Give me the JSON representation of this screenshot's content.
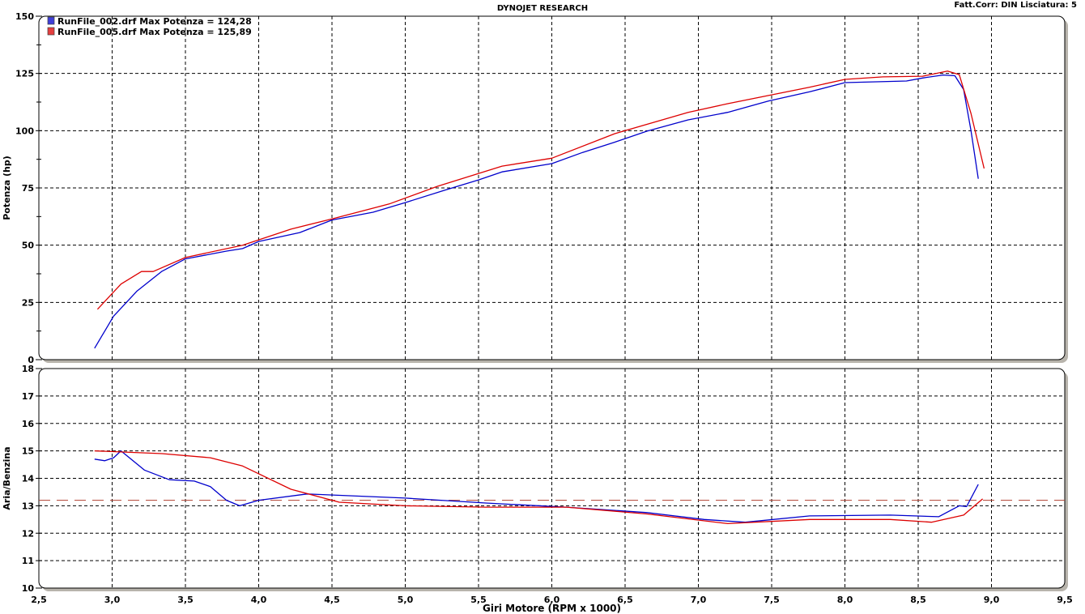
{
  "header": {
    "title": "DYNOJET RESEARCH",
    "info": "Fatt.Corr: DIN  Lisciatura: 5"
  },
  "colors": {
    "run1": "#0000cc",
    "run2": "#dd0000",
    "reference": "#b04030"
  },
  "chart_data": [
    {
      "type": "line",
      "title": "DYNOJET RESEARCH",
      "xlabel": "Giri Motore (RPM x 1000)",
      "ylabel": "Potenza (hp)",
      "xlim": [
        2.5,
        9.5
      ],
      "ylim": [
        0,
        150
      ],
      "x_ticks": [
        "2,5",
        "3,0",
        "3,5",
        "4,0",
        "4,5",
        "5,0",
        "5,5",
        "6,0",
        "6,5",
        "7,0",
        "7,5",
        "8,0",
        "8,5",
        "9,0",
        "9,5"
      ],
      "y_ticks": [
        "0",
        "25",
        "50",
        "75",
        "100",
        "125",
        "150"
      ],
      "grid": true,
      "legend_placement": "top-left",
      "series": [
        {
          "name": "RunFile_002.drf Max Potenza = 124,28",
          "color": "#0000cc",
          "x": [
            2.88,
            3.01,
            3.17,
            3.34,
            3.5,
            3.78,
            3.89,
            4.0,
            4.28,
            4.5,
            4.78,
            5.0,
            5.27,
            5.5,
            5.66,
            6.0,
            6.21,
            6.43,
            6.65,
            6.93,
            7.2,
            7.48,
            7.76,
            8.0,
            8.42,
            8.53,
            8.67,
            8.75,
            8.81,
            8.86,
            8.91
          ],
          "y": [
            5,
            19,
            30,
            38.6,
            44,
            47.4,
            48.5,
            51.6,
            55.5,
            61,
            64.4,
            68.6,
            74,
            78.5,
            82,
            85.6,
            90.5,
            95,
            99.8,
            104.7,
            108,
            113,
            117,
            121,
            121.7,
            123,
            124.3,
            124,
            118,
            100,
            79
          ]
        },
        {
          "name": "RunFile_005.drf Max Potenza = 125,89",
          "color": "#dd0000",
          "x": [
            2.9,
            3.06,
            3.2,
            3.28,
            3.5,
            3.89,
            4.22,
            4.5,
            4.89,
            5.22,
            5.66,
            6.0,
            6.43,
            6.93,
            7.2,
            7.76,
            8.0,
            8.26,
            8.53,
            8.7,
            8.78,
            8.86,
            8.95
          ],
          "y": [
            22,
            33,
            38.5,
            38.5,
            44.6,
            50,
            57,
            61.5,
            68,
            75.7,
            84.5,
            88,
            98.7,
            108,
            111.8,
            119,
            122.4,
            123.5,
            123.8,
            126,
            124.5,
            107.5,
            83.5
          ]
        }
      ]
    },
    {
      "type": "line",
      "xlabel": "Giri Motore (RPM x 1000)",
      "ylabel": "Aria/Benzina",
      "xlim": [
        2.5,
        9.5
      ],
      "ylim": [
        10,
        18
      ],
      "y_ticks": [
        "10",
        "11",
        "12",
        "13",
        "14",
        "15",
        "16",
        "17",
        "18"
      ],
      "grid": true,
      "reference_line": 13.2,
      "series": [
        {
          "color": "#0000cc",
          "x": [
            2.88,
            2.95,
            3.01,
            3.06,
            3.22,
            3.39,
            3.56,
            3.67,
            3.78,
            3.87,
            4.0,
            4.33,
            5.0,
            5.55,
            6.1,
            6.65,
            7.04,
            7.32,
            7.76,
            8.31,
            8.64,
            8.78,
            8.83,
            8.91
          ],
          "y": [
            14.7,
            14.64,
            14.75,
            15.0,
            14.3,
            13.95,
            13.9,
            13.7,
            13.2,
            13.0,
            13.2,
            13.43,
            13.28,
            13.1,
            12.95,
            12.75,
            12.5,
            12.4,
            12.63,
            12.66,
            12.6,
            13.0,
            12.97,
            13.78
          ]
        },
        {
          "color": "#dd0000",
          "x": [
            2.88,
            3.34,
            3.67,
            3.89,
            4.22,
            4.55,
            5.0,
            5.55,
            6.1,
            6.65,
            7.2,
            7.76,
            8.31,
            8.59,
            8.81,
            8.94
          ],
          "y": [
            15.0,
            14.9,
            14.75,
            14.45,
            13.6,
            13.13,
            13.0,
            12.95,
            12.95,
            12.7,
            12.35,
            12.5,
            12.5,
            12.4,
            12.66,
            13.25
          ]
        }
      ]
    }
  ]
}
